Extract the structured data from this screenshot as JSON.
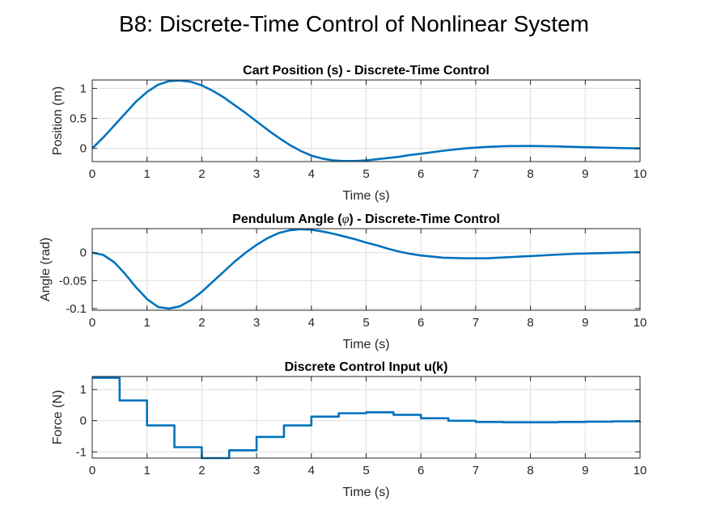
{
  "figure": {
    "title": "B8: Discrete-Time Control of Nonlinear System"
  },
  "chart_data": [
    {
      "type": "line",
      "title": "Cart Position (s) - Discrete-Time Control",
      "title_parts": [
        {
          "text": "Cart Position (s) - Discrete-Time Control",
          "italic": false
        }
      ],
      "xlabel": "Time (s)",
      "ylabel": "Position (m)",
      "xlim": [
        0,
        10
      ],
      "ylim": [
        -0.22,
        1.14
      ],
      "xticks": [
        0,
        1,
        2,
        3,
        4,
        5,
        6,
        7,
        8,
        9,
        10
      ],
      "yticks": [
        0,
        0.5,
        1
      ],
      "ytick_labels": [
        "0",
        "0.5",
        "1"
      ],
      "grid": true,
      "color": "#0072BD",
      "step": false,
      "x": [
        0,
        0.2,
        0.4,
        0.6,
        0.8,
        1.0,
        1.2,
        1.4,
        1.6,
        1.8,
        2.0,
        2.2,
        2.4,
        2.6,
        2.8,
        3.0,
        3.2,
        3.4,
        3.6,
        3.8,
        4.0,
        4.2,
        4.4,
        4.6,
        4.8,
        5.0,
        5.2,
        5.4,
        5.6,
        5.8,
        6.0,
        6.4,
        6.8,
        7.2,
        7.6,
        8.0,
        8.4,
        8.8,
        9.2,
        9.6,
        10.0
      ],
      "y": [
        0,
        0.18,
        0.38,
        0.58,
        0.78,
        0.94,
        1.06,
        1.12,
        1.13,
        1.11,
        1.05,
        0.96,
        0.85,
        0.72,
        0.59,
        0.45,
        0.31,
        0.18,
        0.06,
        -0.04,
        -0.12,
        -0.17,
        -0.2,
        -0.21,
        -0.21,
        -0.2,
        -0.18,
        -0.16,
        -0.14,
        -0.11,
        -0.09,
        -0.04,
        0.0,
        0.025,
        0.038,
        0.04,
        0.035,
        0.025,
        0.015,
        0.007,
        0.0
      ]
    },
    {
      "type": "line",
      "title": "Pendulum Angle (φ) - Discrete-Time Control",
      "title_parts": [
        {
          "text": "Pendulum Angle (",
          "italic": false
        },
        {
          "text": "φ",
          "italic": true
        },
        {
          "text": ") - Discrete-Time Control",
          "italic": false
        }
      ],
      "xlabel": "Time (s)",
      "ylabel": "Angle (rad)",
      "xlim": [
        0,
        10
      ],
      "ylim": [
        -0.103,
        0.043
      ],
      "xticks": [
        0,
        1,
        2,
        3,
        4,
        5,
        6,
        7,
        8,
        9,
        10
      ],
      "yticks": [
        -0.1,
        -0.05,
        0
      ],
      "ytick_labels": [
        "-0.1",
        "-0.05",
        "0"
      ],
      "grid": true,
      "color": "#0072BD",
      "step": false,
      "x": [
        0,
        0.2,
        0.4,
        0.6,
        0.8,
        1.0,
        1.2,
        1.4,
        1.6,
        1.8,
        2.0,
        2.2,
        2.4,
        2.6,
        2.8,
        3.0,
        3.2,
        3.4,
        3.6,
        3.8,
        4.0,
        4.2,
        4.4,
        4.6,
        4.8,
        5.0,
        5.2,
        5.4,
        5.6,
        5.8,
        6.0,
        6.4,
        6.8,
        7.2,
        7.6,
        8.0,
        8.4,
        8.8,
        9.2,
        9.6,
        10.0
      ],
      "y": [
        0,
        -0.004,
        -0.017,
        -0.038,
        -0.062,
        -0.083,
        -0.097,
        -0.1,
        -0.096,
        -0.085,
        -0.07,
        -0.052,
        -0.034,
        -0.016,
        0.0,
        0.014,
        0.026,
        0.035,
        0.04,
        0.042,
        0.041,
        0.038,
        0.034,
        0.029,
        0.024,
        0.018,
        0.013,
        0.007,
        0.002,
        -0.002,
        -0.005,
        -0.009,
        -0.01,
        -0.01,
        -0.008,
        -0.006,
        -0.004,
        -0.002,
        -0.001,
        0.0,
        0.001
      ]
    },
    {
      "type": "line",
      "title": "Discrete Control Input u(k)",
      "title_parts": [
        {
          "text": "Discrete Control Input u(k)",
          "italic": false
        }
      ],
      "xlabel": "Time (s)",
      "ylabel": "Force (N)",
      "xlim": [
        0,
        10
      ],
      "ylim": [
        -1.2,
        1.42
      ],
      "xticks": [
        0,
        1,
        2,
        3,
        4,
        5,
        6,
        7,
        8,
        9,
        10
      ],
      "yticks": [
        -1,
        0,
        1
      ],
      "ytick_labels": [
        "-1",
        "0",
        "1"
      ],
      "grid": true,
      "color": "#0072BD",
      "step": true,
      "x": [
        0,
        0.5,
        1.0,
        1.5,
        2.0,
        2.5,
        3.0,
        3.5,
        4.0,
        4.5,
        5.0,
        5.5,
        6.0,
        6.5,
        7.0,
        7.5,
        8.0,
        8.5,
        9.0,
        9.5,
        10.0
      ],
      "y": [
        1.38,
        0.65,
        -0.15,
        -0.85,
        -1.2,
        -0.95,
        -0.52,
        -0.15,
        0.13,
        0.24,
        0.27,
        0.19,
        0.08,
        0.0,
        -0.04,
        -0.05,
        -0.05,
        -0.04,
        -0.03,
        -0.02,
        -0.01
      ]
    }
  ]
}
